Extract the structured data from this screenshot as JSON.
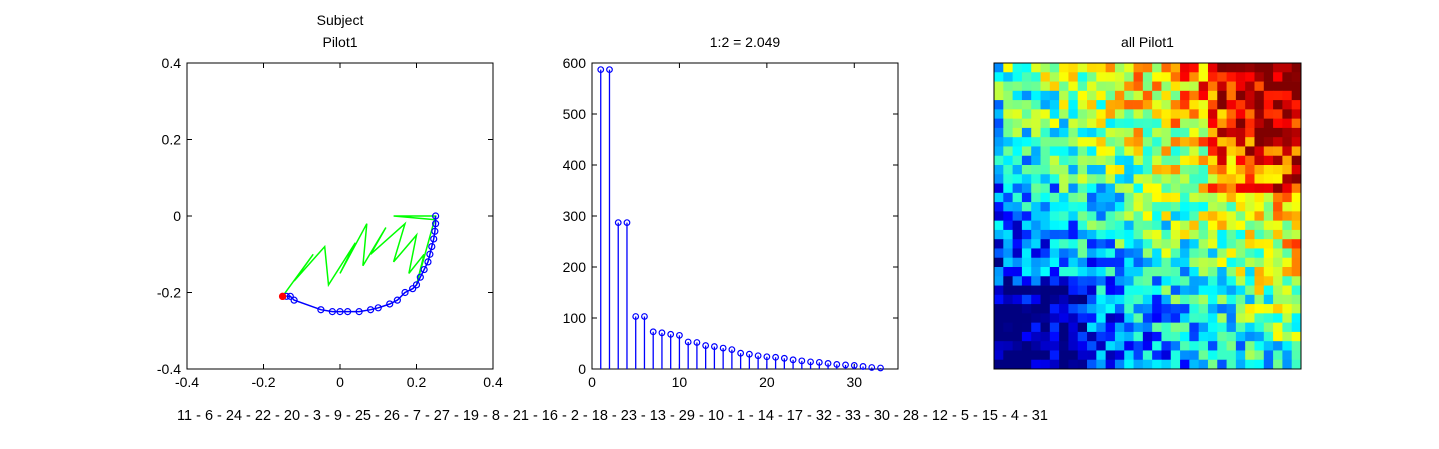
{
  "chart_data": [
    {
      "type": "line",
      "title_lines": [
        "Subject",
        "Pilot1"
      ],
      "xlim": [
        -0.4,
        0.4
      ],
      "ylim": [
        -0.4,
        0.4
      ],
      "x_ticks": [
        -0.4,
        -0.2,
        0,
        0.2,
        0.4
      ],
      "y_ticks": [
        -0.4,
        -0.2,
        0,
        0.2,
        0.4
      ],
      "x_tick_labels": [
        "-0.4",
        "-0.2",
        "0",
        "0.2",
        "0.4"
      ],
      "y_tick_labels": [
        "-0.4",
        "-0.2",
        "0",
        "0.2",
        "0.4"
      ],
      "series": [
        {
          "style": "line",
          "color": "#00ff00",
          "x": [
            -0.15,
            -0.07,
            -0.12,
            -0.04,
            -0.03,
            0.04,
            0.0,
            0.07,
            0.06,
            0.12,
            0.08,
            0.17,
            0.14,
            0.2,
            0.18,
            0.22,
            0.2,
            0.25,
            0.14,
            0.25
          ],
          "y": [
            -0.21,
            -0.1,
            -0.17,
            -0.08,
            -0.18,
            -0.07,
            -0.15,
            -0.02,
            -0.13,
            -0.03,
            -0.1,
            -0.02,
            -0.12,
            -0.05,
            -0.15,
            -0.1,
            -0.18,
            0.0,
            0.0,
            -0.01
          ]
        },
        {
          "style": "line-markers",
          "color": "#0000ff",
          "x": [
            0.25,
            0.25,
            0.248,
            0.245,
            0.24,
            0.235,
            0.23,
            0.22,
            0.21,
            0.2,
            0.19,
            0.17,
            0.15,
            0.13,
            0.1,
            0.08,
            0.05,
            0.02,
            0.0,
            -0.02,
            -0.05,
            -0.12,
            -0.13,
            -0.14
          ],
          "y": [
            0.0,
            -0.02,
            -0.04,
            -0.06,
            -0.08,
            -0.1,
            -0.12,
            -0.14,
            -0.16,
            -0.18,
            -0.19,
            -0.2,
            -0.22,
            -0.23,
            -0.24,
            -0.245,
            -0.25,
            -0.25,
            -0.25,
            -0.25,
            -0.245,
            -0.22,
            -0.21,
            -0.21
          ]
        },
        {
          "style": "marker",
          "color": "#ff0000",
          "x": [
            -0.15
          ],
          "y": [
            -0.21
          ]
        }
      ]
    },
    {
      "type": "bar",
      "style": "stem",
      "title": "1:2 = 2.049",
      "color": "#0000ff",
      "xlim": [
        0,
        35
      ],
      "ylim": [
        0,
        600
      ],
      "x_ticks": [
        0,
        10,
        20,
        30
      ],
      "y_ticks": [
        0,
        100,
        200,
        300,
        400,
        500,
        600
      ],
      "x_tick_labels": [
        "0",
        "10",
        "20",
        "30"
      ],
      "y_tick_labels": [
        "0",
        "100",
        "200",
        "300",
        "400",
        "500",
        "600"
      ],
      "x": [
        1,
        2,
        3,
        4,
        5,
        6,
        7,
        8,
        9,
        10,
        11,
        12,
        13,
        14,
        15,
        16,
        17,
        18,
        19,
        20,
        21,
        22,
        23,
        24,
        25,
        26,
        27,
        28,
        29,
        30,
        31,
        32,
        33
      ],
      "values": [
        587,
        587,
        287,
        287,
        103,
        103,
        73,
        71,
        68,
        66,
        53,
        52,
        46,
        44,
        41,
        38,
        31,
        29,
        26,
        24,
        23,
        21,
        18,
        16,
        14,
        13,
        11,
        9,
        8,
        7,
        5,
        3,
        2
      ]
    },
    {
      "type": "heatmap",
      "title": "all Pilot1",
      "rows": 33,
      "cols": 33,
      "colormap": "jet",
      "value_range": [
        0,
        1
      ],
      "noise_seed": 7
    }
  ],
  "ordering_text": "11 - 6 - 24 - 22 - 20 - 3 - 9 - 25 - 26 - 7 - 27 - 19 - 8 - 21 - 16 - 2 - 18 - 23 - 13 - 29 - 10 - 1 - 14 - 17 - 32 - 33 - 30 - 28 - 12 - 5 - 15 - 4 - 31"
}
